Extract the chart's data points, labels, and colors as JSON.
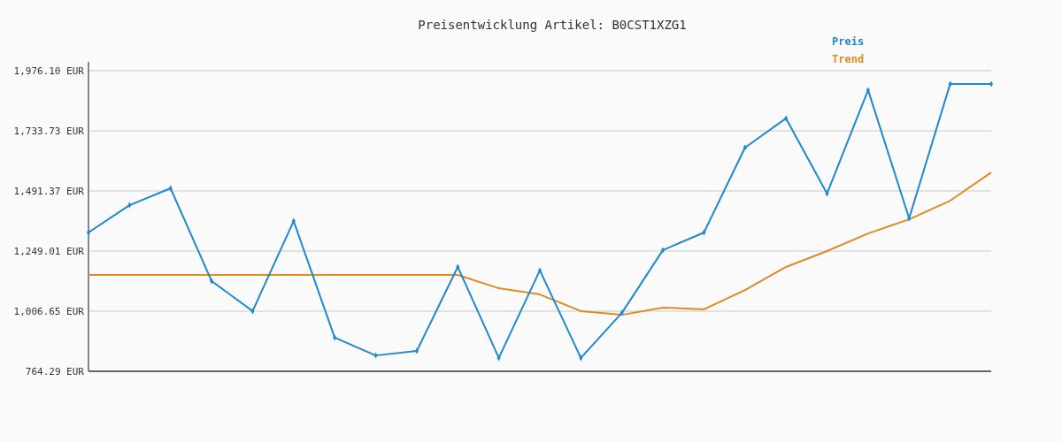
{
  "chart_data": {
    "type": "line",
    "title": "Preisentwicklung Artikel: B0CST1XZG1",
    "categories": [
      null,
      null,
      null,
      null,
      null,
      null,
      null,
      null,
      null,
      null,
      null,
      null,
      null,
      null,
      null,
      null,
      null,
      null,
      null,
      null,
      null,
      null,
      null
    ],
    "series": [
      {
        "name": "Preis",
        "color": "#1f88d0",
        "marker": "diamond",
        "values": [
          1324,
          1434,
          1502,
          1128,
          1007,
          1370,
          900,
          828,
          846,
          1185,
          818,
          1171,
          818,
          1000,
          1253,
          1324,
          1666,
          1784,
          1481,
          1898,
          1381,
          1923,
          1923
        ]
      },
      {
        "name": "Trend",
        "color": "#e08a20",
        "values": [
          1153,
          1153,
          1153,
          1153,
          1153,
          1153,
          1153,
          1153,
          1153,
          1153,
          1099,
          1074,
          1007,
          992,
          1021,
          1014,
          1092,
          1185,
          1249,
          1320,
          1377,
          1452,
          1566
        ]
      }
    ],
    "ylim": [
      764.29,
      1976.1
    ],
    "yticks": [
      {
        "value": 764.29,
        "label": "764.29 EUR"
      },
      {
        "value": 1006.65,
        "label": "1,006.65 EUR"
      },
      {
        "value": 1249.01,
        "label": "1,249.01 EUR"
      },
      {
        "value": 1491.37,
        "label": "1,491.37 EUR"
      },
      {
        "value": 1733.73,
        "label": "1,733.73 EUR"
      },
      {
        "value": 1976.1,
        "label": "1,976.10 EUR"
      }
    ],
    "grid": "y",
    "legend": "top right"
  }
}
